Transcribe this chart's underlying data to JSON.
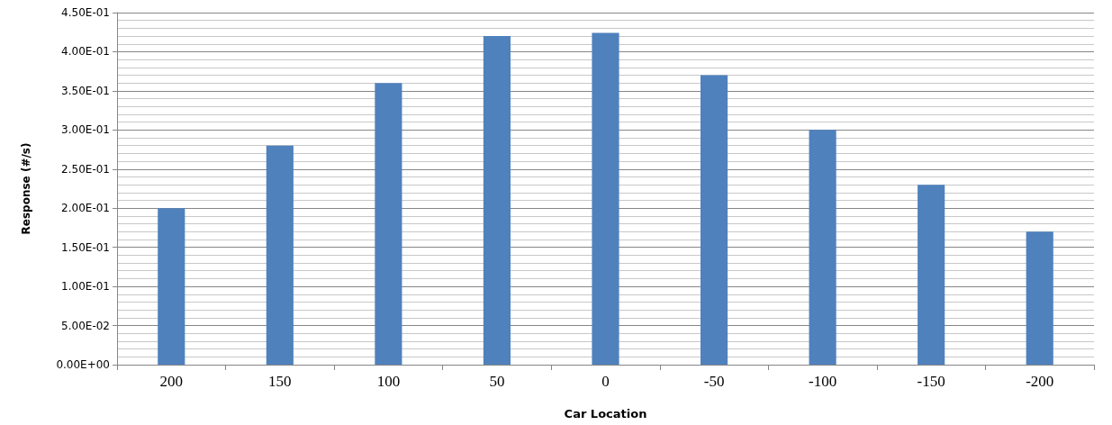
{
  "chart_data": {
    "type": "bar",
    "xlabel": "Car Location",
    "ylabel": "Response (#/s)",
    "categories": [
      "200",
      "150",
      "100",
      "50",
      "0",
      "-50",
      "-100",
      "-150",
      "-200"
    ],
    "values": [
      0.2,
      0.28,
      0.36,
      0.42,
      0.424,
      0.37,
      0.3,
      0.23,
      0.17
    ],
    "color": "#4f81bd",
    "ylim": [
      0,
      0.45
    ],
    "yticks": [
      {
        "value": 0,
        "label": "0.00E+00"
      },
      {
        "value": 0.05,
        "label": "5.00E-02"
      },
      {
        "value": 0.1,
        "label": "1.00E-01"
      },
      {
        "value": 0.15,
        "label": "1.50E-01"
      },
      {
        "value": 0.2,
        "label": "2.00E-01"
      },
      {
        "value": 0.25,
        "label": "2.50E-01"
      },
      {
        "value": 0.3,
        "label": "3.00E-01"
      },
      {
        "value": 0.35,
        "label": "3.50E-01"
      },
      {
        "value": 0.4,
        "label": "4.00E-01"
      },
      {
        "value": 0.45,
        "label": "4.50E-01"
      }
    ],
    "grid": true
  }
}
